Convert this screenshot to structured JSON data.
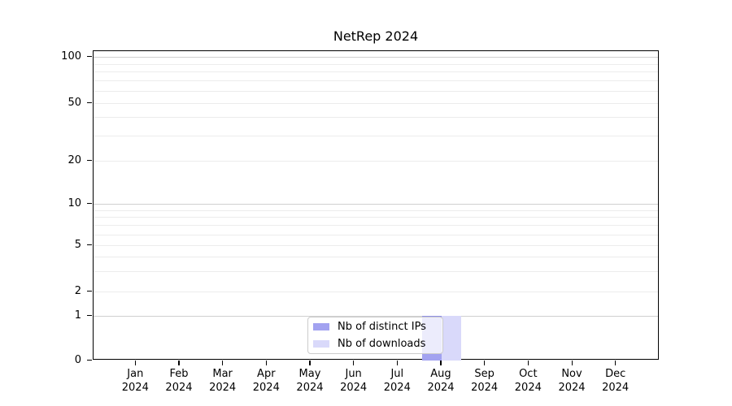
{
  "chart_data": {
    "type": "bar",
    "title": "NetRep 2024",
    "categories": [
      "Jan 2024",
      "Feb 2024",
      "Mar 2024",
      "Apr 2024",
      "May 2024",
      "Jun 2024",
      "Jul 2024",
      "Aug 2024",
      "Sep 2024",
      "Oct 2024",
      "Nov 2024",
      "Dec 2024"
    ],
    "series": [
      {
        "name": "Nb of distinct IPs",
        "color": "#a2a2f0",
        "values": [
          0,
          0,
          0,
          0,
          0,
          0,
          0,
          1,
          0,
          0,
          0,
          0
        ]
      },
      {
        "name": "Nb of downloads",
        "color": "#d9d9fa",
        "values": [
          0,
          0,
          0,
          0,
          0,
          0,
          0,
          1,
          0,
          0,
          0,
          0
        ]
      }
    ],
    "xlabel": "",
    "ylabel": "",
    "y_scale": "symlog",
    "y_ticks": [
      0,
      1,
      2,
      5,
      10,
      20,
      50,
      100
    ],
    "ylim": [
      0,
      110
    ],
    "grid": "horizontal log gridlines, majors at 1/10/100, faint minors",
    "legend_position": "lower center inside plot",
    "legend_frame_color": "#cccccc",
    "text_color": "#000000"
  }
}
